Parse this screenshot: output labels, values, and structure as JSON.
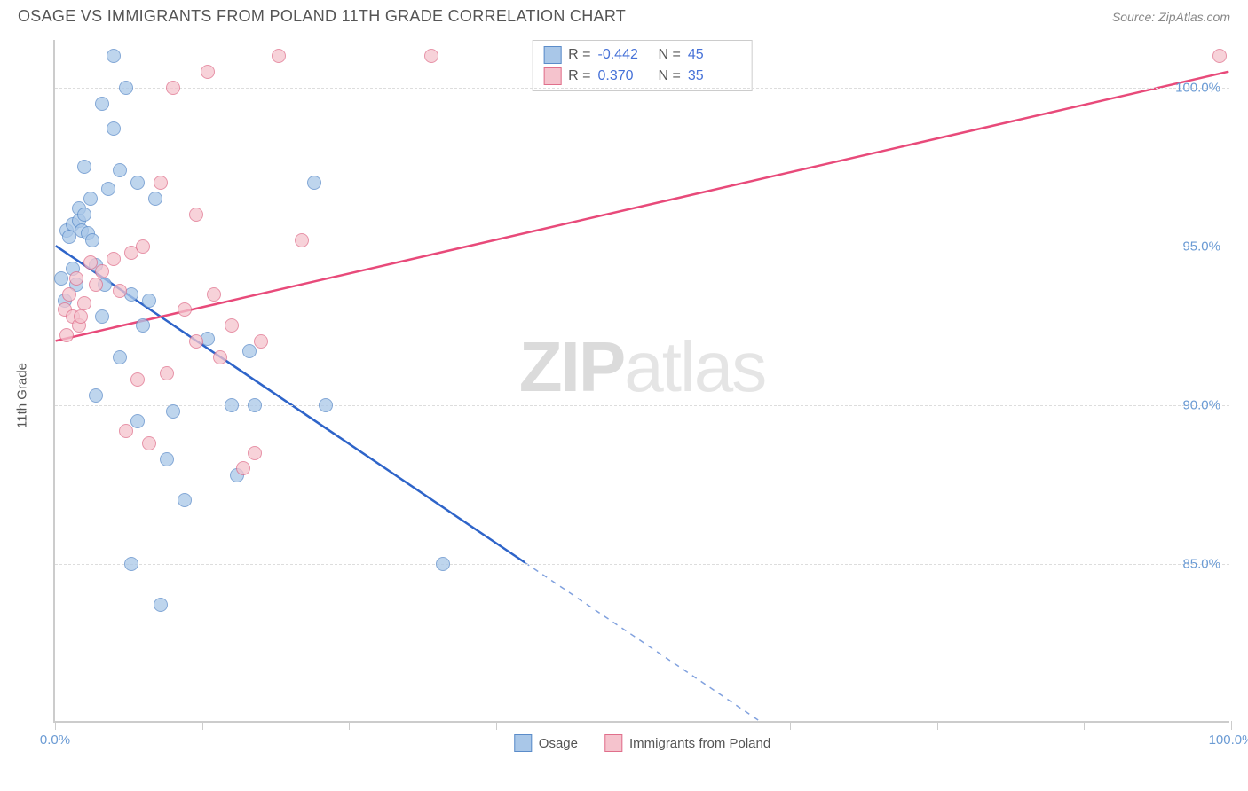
{
  "header": {
    "title": "OSAGE VS IMMIGRANTS FROM POLAND 11TH GRADE CORRELATION CHART",
    "source_label": "Source:",
    "source_value": "ZipAtlas.com"
  },
  "watermark": {
    "zip": "ZIP",
    "atlas": "atlas"
  },
  "chart": {
    "type": "scatter",
    "ylabel": "11th Grade",
    "xlim": [
      0,
      100
    ],
    "ylim": [
      80,
      101.5
    ],
    "background_color": "#ffffff",
    "grid_color": "#dddddd",
    "axis_color": "#cccccc",
    "tick_label_color": "#6b9bd4",
    "yticks": [
      {
        "v": 85.0,
        "label": "85.0%"
      },
      {
        "v": 90.0,
        "label": "90.0%"
      },
      {
        "v": 95.0,
        "label": "95.0%"
      },
      {
        "v": 100.0,
        "label": "100.0%"
      }
    ],
    "xticks": [
      {
        "v": 0,
        "label": "0.0%"
      },
      {
        "v": 12.5,
        "label": ""
      },
      {
        "v": 25,
        "label": ""
      },
      {
        "v": 37.5,
        "label": ""
      },
      {
        "v": 50,
        "label": ""
      },
      {
        "v": 62.5,
        "label": ""
      },
      {
        "v": 75,
        "label": ""
      },
      {
        "v": 87.5,
        "label": ""
      },
      {
        "v": 100,
        "label": "100.0%"
      }
    ],
    "series": [
      {
        "name": "Osage",
        "fill_color": "#a9c7e8",
        "stroke_color": "#5b8cc9",
        "line_color": "#2e64c9",
        "R": "-0.442",
        "N": "45",
        "trendline": {
          "x1": 0,
          "y1": 95.0,
          "x2_solid": 40,
          "y2_solid": 85.0,
          "x2_dash": 70,
          "y2_dash": 77.5
        },
        "points": [
          {
            "x": 0.5,
            "y": 94.0
          },
          {
            "x": 0.8,
            "y": 93.3
          },
          {
            "x": 1.0,
            "y": 95.5
          },
          {
            "x": 1.2,
            "y": 95.3
          },
          {
            "x": 1.5,
            "y": 94.3
          },
          {
            "x": 1.5,
            "y": 95.7
          },
          {
            "x": 1.8,
            "y": 93.8
          },
          {
            "x": 2.0,
            "y": 96.2
          },
          {
            "x": 2.0,
            "y": 95.8
          },
          {
            "x": 2.3,
            "y": 95.5
          },
          {
            "x": 2.5,
            "y": 96.0
          },
          {
            "x": 2.5,
            "y": 97.5
          },
          {
            "x": 2.8,
            "y": 95.4
          },
          {
            "x": 3.0,
            "y": 96.5
          },
          {
            "x": 3.2,
            "y": 95.2
          },
          {
            "x": 3.5,
            "y": 94.4
          },
          {
            "x": 3.5,
            "y": 90.3
          },
          {
            "x": 4.0,
            "y": 99.5
          },
          {
            "x": 4.2,
            "y": 93.8
          },
          {
            "x": 4.5,
            "y": 96.8
          },
          {
            "x": 5.0,
            "y": 98.7
          },
          {
            "x": 5.0,
            "y": 101.0
          },
          {
            "x": 5.5,
            "y": 91.5
          },
          {
            "x": 5.5,
            "y": 97.4
          },
          {
            "x": 6.0,
            "y": 100.0
          },
          {
            "x": 6.5,
            "y": 93.5
          },
          {
            "x": 6.5,
            "y": 85.0
          },
          {
            "x": 7.0,
            "y": 97.0
          },
          {
            "x": 7.0,
            "y": 89.5
          },
          {
            "x": 7.5,
            "y": 92.5
          },
          {
            "x": 8.0,
            "y": 93.3
          },
          {
            "x": 8.5,
            "y": 96.5
          },
          {
            "x": 9.0,
            "y": 83.7
          },
          {
            "x": 9.5,
            "y": 88.3
          },
          {
            "x": 10.0,
            "y": 89.8
          },
          {
            "x": 11.0,
            "y": 87.0
          },
          {
            "x": 13.0,
            "y": 92.1
          },
          {
            "x": 15.0,
            "y": 90.0
          },
          {
            "x": 15.5,
            "y": 87.8
          },
          {
            "x": 16.5,
            "y": 91.7
          },
          {
            "x": 17.0,
            "y": 90.0
          },
          {
            "x": 22.0,
            "y": 97.0
          },
          {
            "x": 23.0,
            "y": 90.0
          },
          {
            "x": 33.0,
            "y": 85.0
          },
          {
            "x": 4.0,
            "y": 92.8
          }
        ]
      },
      {
        "name": "Immigrants from Poland",
        "fill_color": "#f5c3cd",
        "stroke_color": "#e06f8b",
        "line_color": "#e84a7a",
        "R": "0.370",
        "N": "35",
        "trendline": {
          "x1": 0,
          "y1": 92.0,
          "x2_solid": 100,
          "y2_solid": 100.5,
          "x2_dash": 100,
          "y2_dash": 100.5
        },
        "points": [
          {
            "x": 0.8,
            "y": 93.0
          },
          {
            "x": 1.0,
            "y": 92.2
          },
          {
            "x": 1.2,
            "y": 93.5
          },
          {
            "x": 1.5,
            "y": 92.8
          },
          {
            "x": 1.8,
            "y": 94.0
          },
          {
            "x": 2.0,
            "y": 92.5
          },
          {
            "x": 2.2,
            "y": 92.8
          },
          {
            "x": 2.5,
            "y": 93.2
          },
          {
            "x": 3.0,
            "y": 94.5
          },
          {
            "x": 3.5,
            "y": 93.8
          },
          {
            "x": 4.0,
            "y": 94.2
          },
          {
            "x": 5.0,
            "y": 94.6
          },
          {
            "x": 5.5,
            "y": 93.6
          },
          {
            "x": 6.0,
            "y": 89.2
          },
          {
            "x": 6.5,
            "y": 94.8
          },
          {
            "x": 7.0,
            "y": 90.8
          },
          {
            "x": 7.5,
            "y": 95.0
          },
          {
            "x": 8.0,
            "y": 88.8
          },
          {
            "x": 9.0,
            "y": 97.0
          },
          {
            "x": 9.5,
            "y": 91.0
          },
          {
            "x": 10.0,
            "y": 100.0
          },
          {
            "x": 11.0,
            "y": 93.0
          },
          {
            "x": 12.0,
            "y": 92.0
          },
          {
            "x": 12.0,
            "y": 96.0
          },
          {
            "x": 13.0,
            "y": 100.5
          },
          {
            "x": 13.5,
            "y": 93.5
          },
          {
            "x": 14.0,
            "y": 91.5
          },
          {
            "x": 15.0,
            "y": 92.5
          },
          {
            "x": 16.0,
            "y": 88.0
          },
          {
            "x": 17.0,
            "y": 88.5
          },
          {
            "x": 17.5,
            "y": 92.0
          },
          {
            "x": 19.0,
            "y": 101.0
          },
          {
            "x": 21.0,
            "y": 95.2
          },
          {
            "x": 32.0,
            "y": 101.0
          },
          {
            "x": 99.0,
            "y": 101.0
          }
        ]
      }
    ],
    "stats_legend": {
      "R_label": "R =",
      "N_label": "N ="
    },
    "bottom_legend": {
      "items": [
        {
          "label": "Osage",
          "fill": "#a9c7e8",
          "stroke": "#5b8cc9"
        },
        {
          "label": "Immigrants from Poland",
          "fill": "#f5c3cd",
          "stroke": "#e06f8b"
        }
      ]
    }
  }
}
